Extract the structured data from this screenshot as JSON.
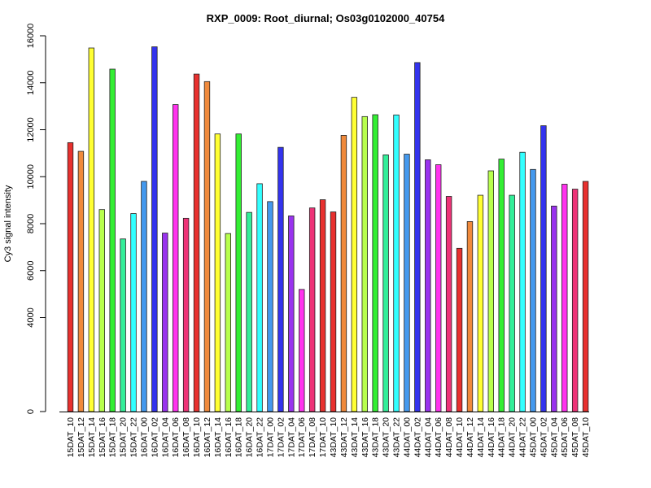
{
  "chart_data": {
    "type": "bar",
    "title": "RXP_0009: Root_diurnal; Os03g0102000_40754",
    "xlabel": "",
    "ylabel": "Cy3 signal intensity",
    "ylim": [
      0,
      16000
    ],
    "yticks": [
      0,
      4000,
      6000,
      8000,
      10000,
      12000,
      14000,
      16000
    ],
    "grid": false,
    "legend": "none",
    "categories": [
      "15DAT_10",
      "15DAT_12",
      "15DAT_14",
      "15DAT_16",
      "15DAT_18",
      "15DAT_20",
      "15DAT_22",
      "16DAT_00",
      "16DAT_02",
      "16DAT_04",
      "16DAT_06",
      "16DAT_08",
      "16DAT_10",
      "16DAT_12",
      "16DAT_14",
      "16DAT_16",
      "16DAT_18",
      "16DAT_20",
      "16DAT_22",
      "17DAT_00",
      "17DAT_02",
      "17DAT_04",
      "17DAT_06",
      "17DAT_08",
      "17DAT_10",
      "43DAT_10",
      "43DAT_12",
      "43DAT_14",
      "43DAT_16",
      "43DAT_18",
      "43DAT_20",
      "43DAT_22",
      "44DAT_00",
      "44DAT_02",
      "44DAT_04",
      "44DAT_06",
      "44DAT_08",
      "44DAT_10",
      "44DAT_12",
      "44DAT_14",
      "44DAT_16",
      "44DAT_18",
      "44DAT_20",
      "44DAT_22",
      "45DAT_00",
      "45DAT_02",
      "45DAT_04",
      "45DAT_06",
      "45DAT_08",
      "45DAT_10"
    ],
    "values": [
      11450,
      11080,
      15480,
      8600,
      14580,
      7350,
      8430,
      9800,
      15530,
      7600,
      13070,
      8230,
      14370,
      14050,
      11820,
      7580,
      11820,
      8480,
      9700,
      8940,
      11250,
      8330,
      5200,
      8670,
      9020,
      8500,
      11760,
      13380,
      12560,
      12640,
      10930,
      12630,
      10960,
      14860,
      10720,
      10510,
      9160,
      6950,
      8090,
      9210,
      10250,
      10750,
      9210,
      11040,
      10310,
      12170,
      8750,
      9680,
      9470,
      9800
    ],
    "colors": [
      "#e8302e",
      "#f08a3c",
      "#ffff33",
      "#b8ff4d",
      "#33ee33",
      "#33ee99",
      "#33ffff",
      "#4499ee",
      "#3333ee",
      "#9933ee",
      "#ff33ee",
      "#ee3377",
      "#e8302e",
      "#f08a3c",
      "#ffff33",
      "#b8ff4d",
      "#33ee33",
      "#33ee99",
      "#33ffff",
      "#4499ee",
      "#3333ee",
      "#9933ee",
      "#ff33ee",
      "#ee3377",
      "#e8302e",
      "#e8302e",
      "#f08a3c",
      "#ffff33",
      "#b8ff4d",
      "#33ee33",
      "#33ee99",
      "#33ffff",
      "#4499ee",
      "#3333ee",
      "#9933ee",
      "#ff33ee",
      "#ee3377",
      "#e8302e",
      "#f08a3c",
      "#ffff33",
      "#b8ff4d",
      "#33ee33",
      "#33ee99",
      "#33ffff",
      "#4499ee",
      "#3333ee",
      "#9933ee",
      "#ff33ee",
      "#ee3377",
      "#e8302e"
    ]
  }
}
